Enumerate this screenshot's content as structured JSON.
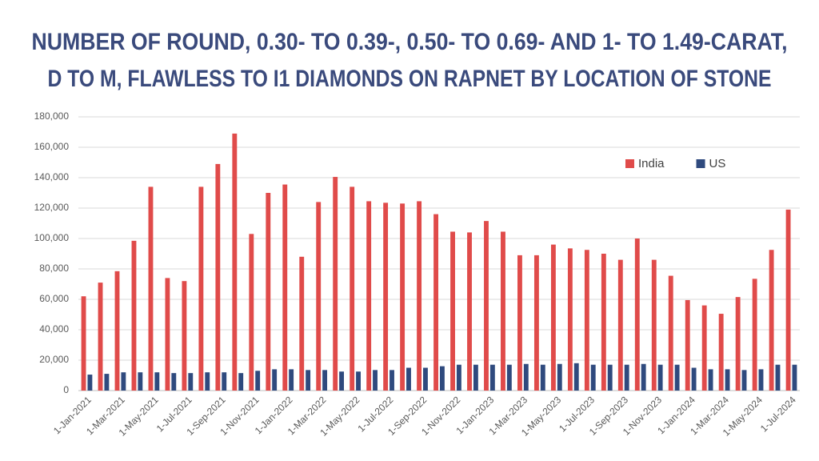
{
  "chart_data": {
    "type": "bar",
    "title": [
      "NUMBER OF ROUND, 0.30- TO 0.39-, 0.50- TO 0.69- AND 1- TO 1.49-CARAT,",
      "D TO M, FLAWLESS TO I1 DIAMONDS ON RAPNET BY LOCATION OF STONE"
    ],
    "categories": [
      "1-Jan-2021",
      null,
      "1-Mar-2021",
      null,
      "1-May-2021",
      null,
      "1-Jul-2021",
      null,
      "1-Sep-2021",
      null,
      "1-Nov-2021",
      null,
      "1-Jan-2022",
      null,
      "1-Mar-2022",
      null,
      "1-May-2022",
      null,
      "1-Jul-2022",
      null,
      "1-Sep-2022",
      null,
      "1-Nov-2022",
      null,
      "1-Jan-2023",
      null,
      "1-Mar-2023",
      null,
      "1-May-2023",
      null,
      "1-Jul-2023",
      null,
      "1-Sep-2023",
      null,
      "1-Nov-2023",
      null,
      "1-Jan-2024",
      null,
      "1-Mar-2024",
      null,
      "1-May-2024",
      null,
      "1-Jul-2024"
    ],
    "series": [
      {
        "name": "India",
        "color": "#e04b4a",
        "values": [
          62000,
          71000,
          78500,
          98500,
          134000,
          74000,
          72000,
          134000,
          149000,
          169000,
          103000,
          130000,
          135500,
          88000,
          124000,
          140500,
          134000,
          124500,
          123500,
          123000,
          124500,
          116000,
          104500,
          104000,
          111500,
          104500,
          89000,
          89000,
          96000,
          93500,
          92500,
          90000,
          86000,
          100000,
          86000,
          75500,
          59500,
          56000,
          50500,
          61500,
          73500,
          92500,
          119000
        ]
      },
      {
        "name": "US",
        "color": "#2f4a7e",
        "values": [
          10500,
          11000,
          12000,
          12000,
          12000,
          11500,
          11500,
          12000,
          12000,
          11500,
          13000,
          14000,
          14000,
          13500,
          13500,
          12500,
          12500,
          13500,
          13500,
          15000,
          15000,
          16000,
          17000,
          17000,
          17000,
          17000,
          17500,
          17000,
          17500,
          18000,
          17000,
          17000,
          17000,
          17500,
          17000,
          17000,
          15000,
          14000,
          14000,
          13500,
          14000,
          17000,
          17000
        ]
      }
    ],
    "ylim": [
      0,
      180000
    ],
    "yticks": [
      0,
      {
        "value": 20000,
        "label": "20,000"
      },
      {
        "value": 40000,
        "label": "40,000"
      },
      {
        "value": 60000,
        "label": "60,000"
      },
      {
        "value": 80000,
        "label": "80,000"
      },
      {
        "value": 100000,
        "label": "100,000"
      },
      {
        "value": 120000,
        "label": "120,000"
      },
      {
        "value": 140000,
        "label": "140,000"
      },
      {
        "value": 160000,
        "label": "160,000"
      },
      {
        "value": 180000,
        "label": "180,000"
      }
    ],
    "grid": true,
    "legend": "upper right"
  }
}
